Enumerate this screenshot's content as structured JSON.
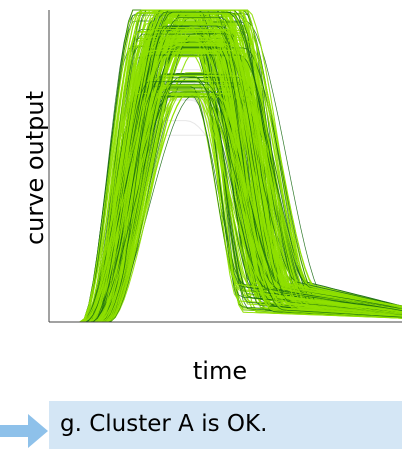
{
  "chart_data": {
    "type": "line",
    "title": "",
    "xlabel": "time",
    "ylabel": "curve output",
    "grid": false,
    "legend": "none",
    "ylim": [
      0,
      1
    ],
    "xlim": [
      0,
      1
    ],
    "num_curves_approx": 260,
    "colors": {
      "primary_curves": "#8fe000",
      "secondary_curves": "#1a6b12",
      "background_curves": "#d0d0d0"
    },
    "representative_series": [
      {
        "x": [
          0.0,
          0.1,
          0.13,
          0.2,
          0.28,
          0.35,
          0.45,
          0.5,
          0.58,
          0.65,
          0.8,
          1.0
        ],
        "y": [
          0.0,
          0.0,
          0.05,
          0.45,
          0.85,
          1.0,
          1.0,
          0.75,
          0.35,
          0.12,
          0.05,
          0.03
        ]
      },
      {
        "x": [
          0.0,
          0.1,
          0.15,
          0.22,
          0.3,
          0.38,
          0.48,
          0.55,
          0.62,
          0.7,
          0.85,
          1.0
        ],
        "y": [
          0.0,
          0.0,
          0.05,
          0.35,
          0.7,
          0.77,
          0.77,
          0.55,
          0.22,
          0.1,
          0.05,
          0.03
        ]
      }
    ]
  },
  "annotation": {
    "label": "g. Cluster A is OK."
  }
}
